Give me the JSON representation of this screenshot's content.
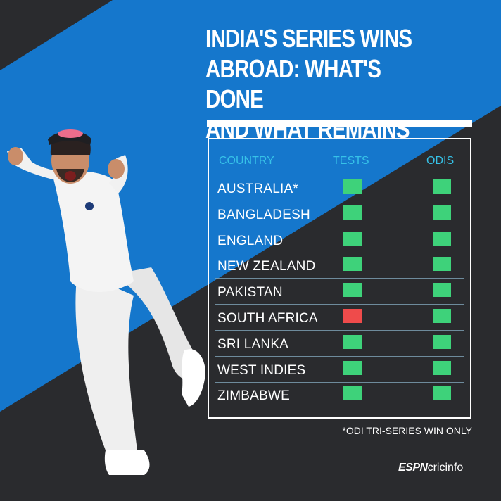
{
  "title_lines": [
    "INDIA'S SERIES WINS",
    "ABROAD: WHAT'S DONE",
    "AND WHAT REMAINS"
  ],
  "headers": {
    "country": "COUNTRY",
    "tests": "TESTS",
    "odis": "ODIS"
  },
  "colors": {
    "won": "#3ed27a",
    "not_won": "#ef4b4b",
    "header": "#36c2e8",
    "blue": "#1577cc",
    "dark": "#2a2b2e"
  },
  "rows": [
    {
      "country": "AUSTRALIA*",
      "tests": "won",
      "odis": "won"
    },
    {
      "country": "BANGLADESH",
      "tests": "won",
      "odis": "won"
    },
    {
      "country": "ENGLAND",
      "tests": "won",
      "odis": "won"
    },
    {
      "country": "NEW ZEALAND",
      "tests": "won",
      "odis": "won"
    },
    {
      "country": "PAKISTAN",
      "tests": "won",
      "odis": "won"
    },
    {
      "country": "SOUTH AFRICA",
      "tests": "not_won",
      "odis": "won"
    },
    {
      "country": "SRI LANKA",
      "tests": "won",
      "odis": "won"
    },
    {
      "country": "WEST INDIES",
      "tests": "won",
      "odis": "won"
    },
    {
      "country": "ZIMBABWE",
      "tests": "won",
      "odis": "won"
    }
  ],
  "footnote": "*ODI TRI-SERIES WIN ONLY",
  "logo": {
    "espn": "ESPN",
    "cricinfo": "cricinfo"
  }
}
